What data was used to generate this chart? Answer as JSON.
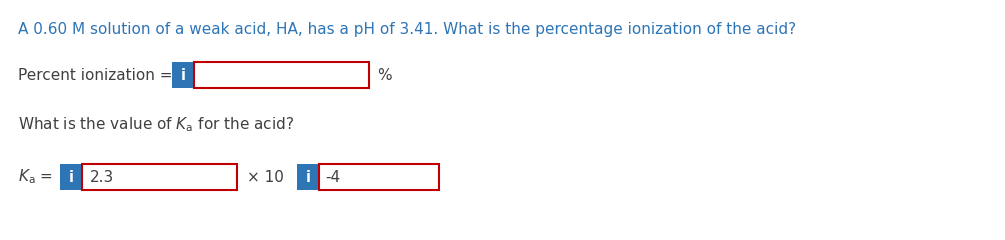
{
  "title_text": "A 0.60 M solution of a weak acid, HA, has a pH of 3.41. What is the percentage ionization of the acid?",
  "title_color": "#2E75B6",
  "title_fontsize": 11.0,
  "bg_color": "#ffffff",
  "label_color": "#404040",
  "label_fontsize": 11.0,
  "box_edge_color": "#C00000",
  "box_face_color": "#ffffff",
  "i_box_color": "#2E75B6",
  "i_text": "i",
  "i_text_color": "#ffffff",
  "i_fontsize": 10.5,
  "line3_value1": "2.3",
  "line3_mid": "× 10",
  "line3_value2": "-4"
}
